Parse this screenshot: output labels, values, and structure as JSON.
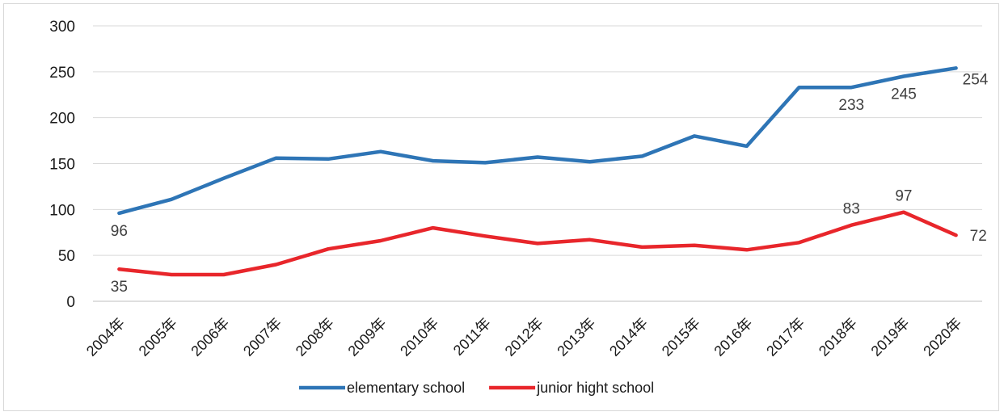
{
  "chart_data": {
    "type": "line",
    "title": "",
    "xlabel": "",
    "ylabel": "",
    "ylim": [
      0,
      300
    ],
    "yticks": [
      0,
      50,
      100,
      150,
      200,
      250,
      300
    ],
    "grid": true,
    "legend_position": "bottom",
    "categories": [
      "2004年",
      "2005年",
      "2006年",
      "2007年",
      "2008年",
      "2009年",
      "2010年",
      "2011年",
      "2012年",
      "2013年",
      "2014年",
      "2015年",
      "2016年",
      "2017年",
      "2018年",
      "2019年",
      "2020年"
    ],
    "series": [
      {
        "name": "elementary school",
        "color": "#2e75b6",
        "values": [
          96,
          111,
          134,
          156,
          155,
          163,
          153,
          151,
          157,
          152,
          158,
          180,
          169,
          233,
          233,
          245,
          254
        ],
        "labeled_points": [
          {
            "index": 0,
            "label": "96",
            "position": "below"
          },
          {
            "index": 14,
            "label": "233",
            "position": "below"
          },
          {
            "index": 15,
            "label": "245",
            "position": "below"
          },
          {
            "index": 16,
            "label": "254",
            "position": "right-below"
          }
        ]
      },
      {
        "name": "junior hight school",
        "color": "#e8262b",
        "values": [
          35,
          29,
          29,
          40,
          57,
          66,
          80,
          71,
          63,
          67,
          59,
          61,
          56,
          64,
          83,
          97,
          72
        ],
        "labeled_points": [
          {
            "index": 0,
            "label": "35",
            "position": "below"
          },
          {
            "index": 14,
            "label": "83",
            "position": "above"
          },
          {
            "index": 15,
            "label": "97",
            "position": "above"
          },
          {
            "index": 16,
            "label": "72",
            "position": "right"
          }
        ]
      }
    ]
  }
}
